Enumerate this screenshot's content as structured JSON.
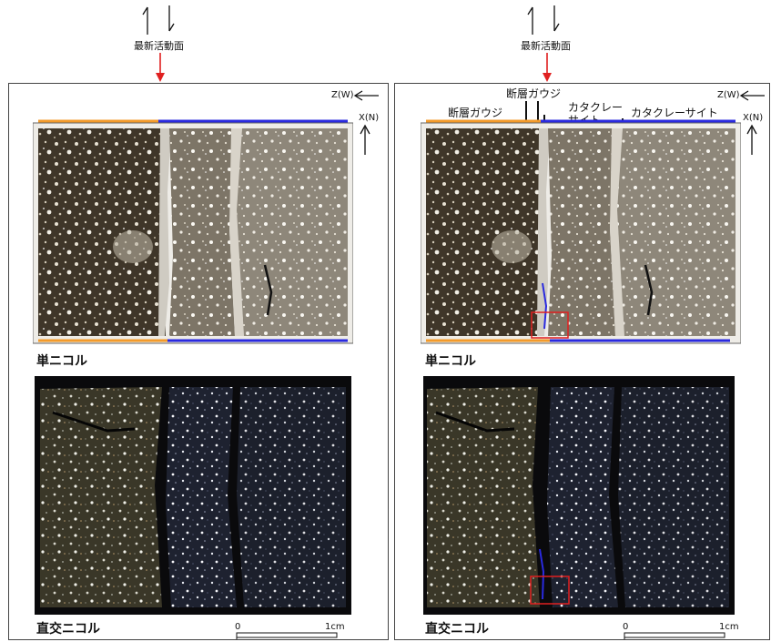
{
  "left": {
    "header_label": "最新活動面",
    "axis_z": "Z(W)",
    "axis_x": "X(N)",
    "caption_plane": "単ニコル",
    "caption_cross": "直交ニコル",
    "scale_zero": "0",
    "scale_one": "1cm"
  },
  "right": {
    "header_label": "最新活動面",
    "axis_z": "Z(W)",
    "axis_x": "X(N)",
    "annotation_gouge_top": "断層ガウジ",
    "annotation_gouge_left": "断層ガウジ",
    "annotation_cataclasite_a_line1": "カタクレー",
    "annotation_cataclasite_a_line2": "サイト",
    "annotation_cataclasite_b": "カタクレーサイト",
    "caption_plane": "単ニコル",
    "caption_cross": "直交ニコル",
    "scale_zero": "0",
    "scale_one": "1cm"
  },
  "colors": {
    "orange": "#f39a2a",
    "blue": "#2a2adf",
    "red": "#e02020",
    "frame": "#444444"
  }
}
